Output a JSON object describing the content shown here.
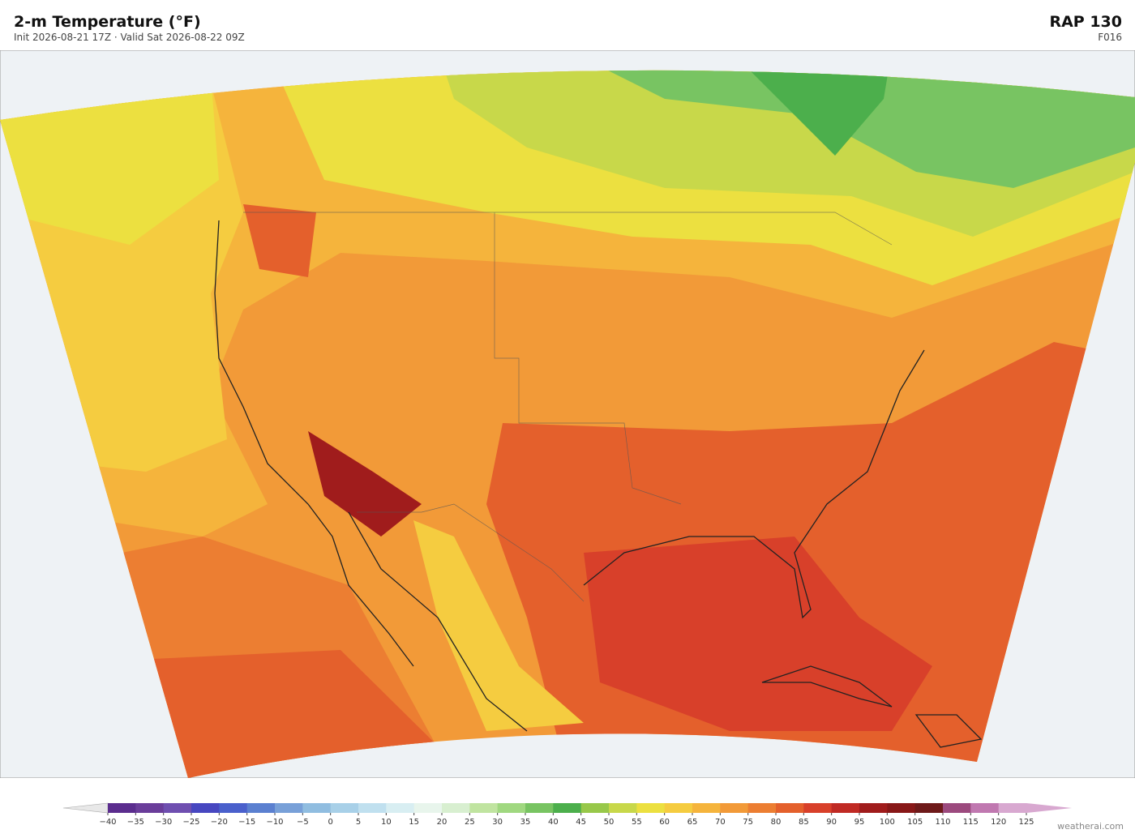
{
  "header": {
    "title": "2-m Temperature  (°F)",
    "subtitle": "Init 2026-08-21 17Z  ·  Valid Sat 2026-08-22 09Z",
    "model": "RAP  130",
    "forecast_hour": "F016"
  },
  "colorbar": {
    "ticks": [
      {
        "value": -40,
        "label": "−40"
      },
      {
        "value": -35,
        "label": "−35"
      },
      {
        "value": -30,
        "label": "−30"
      },
      {
        "value": -25,
        "label": "−25"
      },
      {
        "value": -20,
        "label": "−20"
      },
      {
        "value": -15,
        "label": "−15"
      },
      {
        "value": -10,
        "label": "−10"
      },
      {
        "value": -5,
        "label": "−5"
      },
      0,
      5,
      10,
      15,
      20,
      25,
      30,
      35,
      40,
      45,
      50,
      55,
      60,
      65,
      70,
      75,
      80,
      85,
      90,
      95,
      100,
      105,
      110,
      115,
      120,
      125
    ],
    "colors": [
      "#5b2d8e",
      "#6a3d9a",
      "#6f4fb0",
      "#4747c0",
      "#4a60cc",
      "#5b80d0",
      "#78a0d8",
      "#90bde0",
      "#a8d0e8",
      "#c0e0ef",
      "#d8eef2",
      "#e8f5ec",
      "#d8efd0",
      "#c0e4a0",
      "#a0d880",
      "#78c462",
      "#4caf4c",
      "#98c84a",
      "#c8d84a",
      "#ece040",
      "#f5cc40",
      "#f5b43c",
      "#f29a38",
      "#ec7e32",
      "#e4602c",
      "#d8402a",
      "#c02a24",
      "#a01c1c",
      "#881818",
      "#6e1a1a",
      "#9c4a7e",
      "#c078b0",
      "#d8a8d0"
    ],
    "under_color": "#e8e8e8",
    "over_color": "#d8a8d0"
  },
  "credit": "weatherai.com"
}
